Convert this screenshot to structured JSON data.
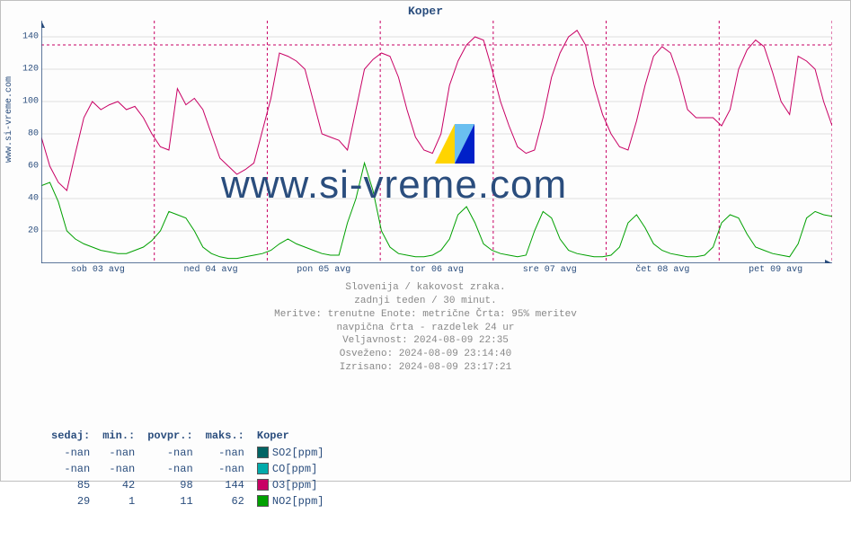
{
  "side_label": "www.si-vreme.com",
  "title": "Koper",
  "watermark_text": "www.si-vreme.com",
  "chart": {
    "type": "line",
    "ylim": [
      0,
      150
    ],
    "yticks": [
      20,
      40,
      60,
      80,
      100,
      120,
      140
    ],
    "xlabels": [
      "sob 03 avg",
      "ned 04 avg",
      "pon 05 avg",
      "tor 06 avg",
      "sre 07 avg",
      "čet 08 avg",
      "pet 09 avg"
    ],
    "grid_color": "#e0e0e0",
    "axis_color": "#2a4d7d",
    "hline_value": 135,
    "hline_color": "#c80064",
    "vline_color": "#c80064",
    "background_color": "#fdfdfd",
    "series": {
      "o3": {
        "color": "#c80064",
        "data": [
          78,
          60,
          50,
          45,
          68,
          90,
          100,
          95,
          98,
          100,
          95,
          97,
          90,
          80,
          72,
          70,
          108,
          98,
          102,
          95,
          80,
          65,
          60,
          55,
          58,
          62,
          82,
          102,
          130,
          128,
          125,
          120,
          100,
          80,
          78,
          76,
          70,
          95,
          120,
          126,
          130,
          128,
          115,
          95,
          78,
          70,
          68,
          80,
          110,
          125,
          135,
          140,
          138,
          120,
          100,
          85,
          72,
          68,
          70,
          90,
          115,
          130,
          140,
          144,
          135,
          110,
          92,
          80,
          72,
          70,
          88,
          110,
          128,
          134,
          130,
          115,
          95,
          90,
          90,
          90,
          85,
          95,
          120,
          132,
          138,
          134,
          118,
          100,
          92,
          128,
          125,
          120,
          100,
          85
        ]
      },
      "no2": {
        "color": "#00a000",
        "data": [
          48,
          50,
          38,
          20,
          15,
          12,
          10,
          8,
          7,
          6,
          6,
          8,
          10,
          14,
          20,
          32,
          30,
          28,
          20,
          10,
          6,
          4,
          3,
          3,
          4,
          5,
          6,
          8,
          12,
          15,
          12,
          10,
          8,
          6,
          5,
          5,
          25,
          40,
          62,
          45,
          20,
          10,
          6,
          5,
          4,
          4,
          5,
          8,
          15,
          30,
          35,
          25,
          12,
          8,
          6,
          5,
          4,
          5,
          20,
          32,
          28,
          15,
          8,
          6,
          5,
          4,
          4,
          5,
          10,
          25,
          30,
          22,
          12,
          8,
          6,
          5,
          4,
          4,
          5,
          10,
          25,
          30,
          28,
          18,
          10,
          8,
          6,
          5,
          4,
          12,
          28,
          32,
          30,
          29
        ]
      }
    }
  },
  "info_lines": [
    "Slovenija / kakovost zraka.",
    "zadnji teden / 30 minut.",
    "Meritve: trenutne  Enote: metrične  Črta: 95% meritev",
    "navpična črta - razdelek 24 ur",
    "Veljavnost: 2024-08-09 22:35",
    "Osveženo: 2024-08-09 23:14:40",
    "Izrisano: 2024-08-09 23:17:21"
  ],
  "stats": {
    "headers": [
      "sedaj:",
      "min.:",
      "povpr.:",
      "maks.:",
      "Koper"
    ],
    "rows": [
      {
        "sedaj": "-nan",
        "min": "-nan",
        "povpr": "-nan",
        "maks": "-nan",
        "color": "#006464",
        "label": "SO2[ppm]"
      },
      {
        "sedaj": "-nan",
        "min": "-nan",
        "povpr": "-nan",
        "maks": "-nan",
        "color": "#00aaaa",
        "label": "CO[ppm]"
      },
      {
        "sedaj": "85",
        "min": "42",
        "povpr": "98",
        "maks": "144",
        "color": "#c80064",
        "label": "O3[ppm]"
      },
      {
        "sedaj": "29",
        "min": "1",
        "povpr": "11",
        "maks": "62",
        "color": "#00a000",
        "label": "NO2[ppm]"
      }
    ]
  }
}
